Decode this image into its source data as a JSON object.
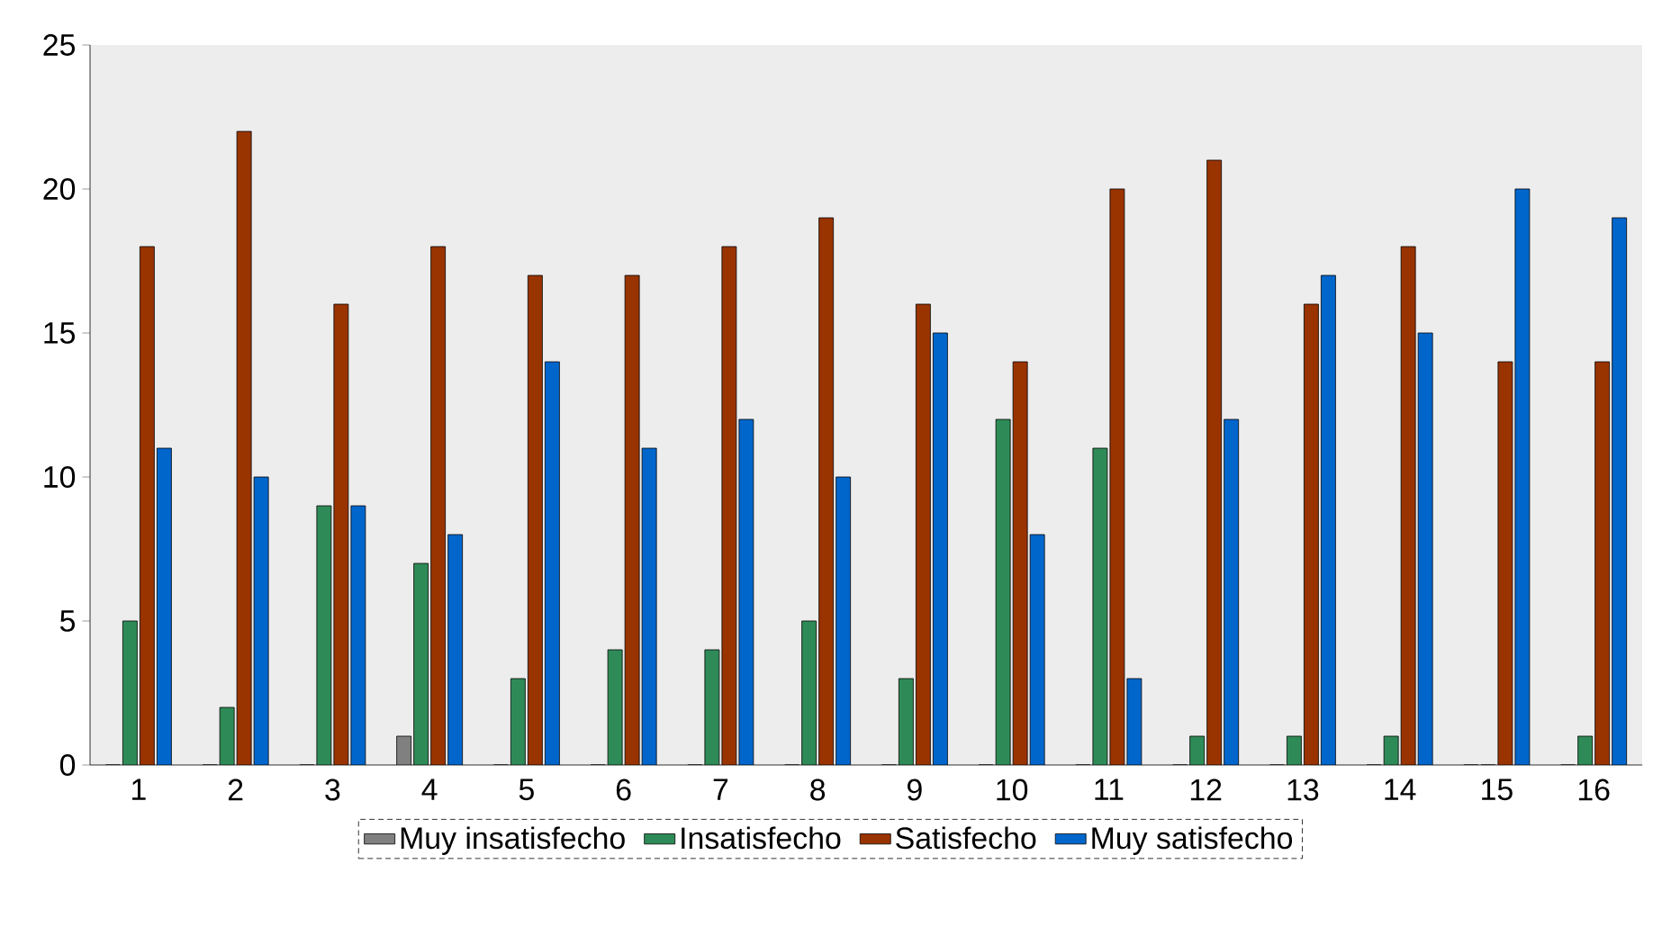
{
  "chart_data": {
    "type": "bar",
    "categories": [
      "1",
      "2",
      "3",
      "4",
      "5",
      "6",
      "7",
      "8",
      "9",
      "10",
      "11",
      "12",
      "13",
      "14",
      "15",
      "16"
    ],
    "series": [
      {
        "name": "Muy insatisfecho",
        "color": "#808080",
        "values": [
          0,
          0,
          0,
          1,
          0,
          0,
          0,
          0,
          0,
          0,
          0,
          0,
          0,
          0,
          0,
          0
        ]
      },
      {
        "name": "Insatisfecho",
        "color": "#2e8b57",
        "values": [
          5,
          2,
          9,
          7,
          3,
          4,
          4,
          5,
          3,
          12,
          11,
          1,
          1,
          1,
          0,
          1
        ]
      },
      {
        "name": "Satisfecho",
        "color": "#993300",
        "values": [
          18,
          22,
          16,
          18,
          17,
          17,
          18,
          19,
          16,
          14,
          20,
          21,
          16,
          18,
          14,
          14
        ]
      },
      {
        "name": "Muy satisfecho",
        "color": "#0066cc",
        "values": [
          11,
          10,
          9,
          8,
          14,
          11,
          12,
          10,
          15,
          8,
          3,
          12,
          17,
          15,
          20,
          19
        ]
      }
    ],
    "ylim": [
      0,
      25
    ],
    "yticks": [
      0,
      5,
      10,
      15,
      20,
      25
    ],
    "grid": false,
    "legend": "bottom"
  }
}
